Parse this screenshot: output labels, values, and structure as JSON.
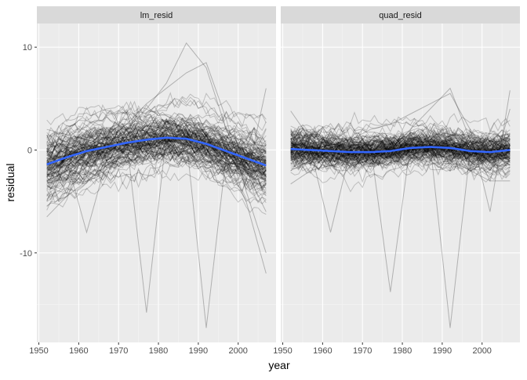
{
  "chart_data": {
    "type": "line",
    "facet_labels": [
      "lm_resid",
      "quad_resid"
    ],
    "xlabel": "year",
    "ylabel": "residual",
    "xlim": [
      1949.5,
      2009.5
    ],
    "ylim": [
      -18.7,
      12.3
    ],
    "x_ticks": [
      1950,
      1960,
      1970,
      1980,
      1990,
      2000
    ],
    "x_tick_labels": [
      "1950",
      "1960",
      "1970",
      "1980",
      "1990",
      "2000"
    ],
    "y_ticks": [
      10,
      0,
      -10
    ],
    "y_tick_labels": [
      "10",
      "0",
      "-10"
    ],
    "grid": true,
    "line_color": "#000000",
    "smooth_color": "#3366FF",
    "panel_background": "#EBEBEB",
    "strip_background": "#D9D9D9",
    "facets": [
      {
        "name": "lm_resid",
        "smooth": {
          "x": [
            1952,
            1957,
            1962,
            1967,
            1972,
            1977,
            1982,
            1987,
            1992,
            1997,
            2002,
            2007
          ],
          "y": [
            -1.4,
            -0.7,
            -0.1,
            0.3,
            0.7,
            1.0,
            1.2,
            1.1,
            0.6,
            -0.1,
            -0.8,
            -1.5
          ]
        },
        "highlight_lines": [
          {
            "x": [
              1952,
              1957,
              1962,
              1967,
              1972,
              1977,
              1982,
              1987,
              1992,
              1997,
              2002,
              2007
            ],
            "y": [
              -2.5,
              -1.0,
              -8.0,
              -1.0,
              0.0,
              0.5,
              1.0,
              0.5,
              0.0,
              -1.0,
              -2.0,
              -3.0
            ]
          },
          {
            "x": [
              1952,
              1957,
              1962,
              1967,
              1972,
              1977,
              1982,
              1987,
              1992,
              1997,
              2002,
              2007
            ],
            "y": [
              -1.5,
              -0.5,
              0.0,
              0.5,
              1.0,
              -15.8,
              1.5,
              1.0,
              0.5,
              -0.5,
              -1.0,
              -2.0
            ]
          },
          {
            "x": [
              1952,
              1957,
              1962,
              1967,
              1972,
              1977,
              1982,
              1987,
              1992,
              1997,
              2002,
              2007
            ],
            "y": [
              -1.0,
              -0.5,
              0.0,
              0.5,
              1.0,
              1.5,
              1.5,
              1.0,
              -17.3,
              -0.5,
              -1.0,
              -1.5
            ]
          },
          {
            "x": [
              1952,
              1957,
              1962,
              1967,
              1972,
              1977,
              1982,
              1987,
              1992,
              1997,
              2002,
              2007
            ],
            "y": [
              -3.0,
              -2.0,
              -1.0,
              0.5,
              2.0,
              4.0,
              6.5,
              10.4,
              8.0,
              2.0,
              -2.0,
              -6.0
            ]
          },
          {
            "x": [
              1952,
              1957,
              1962,
              1967,
              1972,
              1977,
              1982,
              1987,
              1992,
              1997,
              2002,
              2007
            ],
            "y": [
              -2.0,
              -1.0,
              0.0,
              1.0,
              2.5,
              4.5,
              6.0,
              7.5,
              8.5,
              3.0,
              -4.0,
              -10.0
            ]
          },
          {
            "x": [
              1952,
              1957,
              1962,
              1967,
              1972,
              1977,
              1982,
              1987,
              1992,
              1997,
              2002,
              2007
            ],
            "y": [
              2.0,
              1.5,
              1.0,
              0.5,
              0.5,
              0.0,
              -0.5,
              0.0,
              0.5,
              0.0,
              -3.0,
              6.0
            ]
          },
          {
            "x": [
              1952,
              1957,
              1962,
              1967,
              1972,
              1977,
              1982,
              1987,
              1992,
              1997,
              2002,
              2007
            ],
            "y": [
              -6.5,
              -4.5,
              -3.0,
              -1.5,
              -0.5,
              0.5,
              1.5,
              2.0,
              1.0,
              -1.0,
              -5.0,
              -12.0
            ]
          }
        ]
      },
      {
        "name": "quad_resid",
        "smooth": {
          "x": [
            1952,
            1957,
            1962,
            1967,
            1972,
            1977,
            1982,
            1987,
            1992,
            1997,
            2002,
            2007
          ],
          "y": [
            0.1,
            0.0,
            -0.1,
            -0.2,
            -0.2,
            -0.1,
            0.2,
            0.3,
            0.2,
            -0.1,
            -0.2,
            0.0
          ]
        },
        "highlight_lines": [
          {
            "x": [
              1952,
              1957,
              1962,
              1967,
              1972,
              1977,
              1982,
              1987,
              1992,
              1997,
              2002,
              2007
            ],
            "y": [
              -1.0,
              0.0,
              -8.0,
              0.0,
              0.5,
              0.0,
              -0.5,
              0.0,
              0.5,
              0.0,
              -0.5,
              -1.0
            ]
          },
          {
            "x": [
              1952,
              1957,
              1962,
              1967,
              1972,
              1977,
              1982,
              1987,
              1992,
              1997,
              2002,
              2007
            ],
            "y": [
              -0.5,
              0.0,
              0.5,
              0.5,
              0.5,
              -13.8,
              0.5,
              0.5,
              0.0,
              0.0,
              0.0,
              0.0
            ]
          },
          {
            "x": [
              1952,
              1957,
              1962,
              1967,
              1972,
              1977,
              1982,
              1987,
              1992,
              1997,
              2002,
              2007
            ],
            "y": [
              0.0,
              0.0,
              0.5,
              0.5,
              0.5,
              0.5,
              0.5,
              0.5,
              -17.3,
              0.0,
              0.0,
              0.5
            ]
          },
          {
            "x": [
              1952,
              1957,
              1962,
              1967,
              1972,
              1977,
              1982,
              1987,
              1992,
              1997,
              2002,
              2007
            ],
            "y": [
              3.8,
              1.0,
              -1.0,
              -1.5,
              -1.0,
              0.0,
              2.0,
              4.0,
              6.0,
              1.0,
              -3.0,
              4.0
            ]
          },
          {
            "x": [
              1952,
              1957,
              1962,
              1967,
              1972,
              1977,
              1982,
              1987,
              1992,
              1997,
              2002,
              2007
            ],
            "y": [
              -2.0,
              -1.0,
              0.0,
              1.0,
              2.0,
              2.5,
              3.5,
              4.5,
              5.5,
              2.0,
              -6.0,
              5.8
            ]
          },
          {
            "x": [
              1952,
              1957,
              1962,
              1967,
              1972,
              1977,
              1982,
              1987,
              1992,
              1997,
              2002,
              2007
            ],
            "y": [
              -3.3,
              -2.0,
              -1.5,
              -1.0,
              -0.5,
              0.0,
              0.5,
              0.0,
              -1.0,
              -2.0,
              -3.0,
              -3.0
            ]
          }
        ]
      }
    ]
  }
}
